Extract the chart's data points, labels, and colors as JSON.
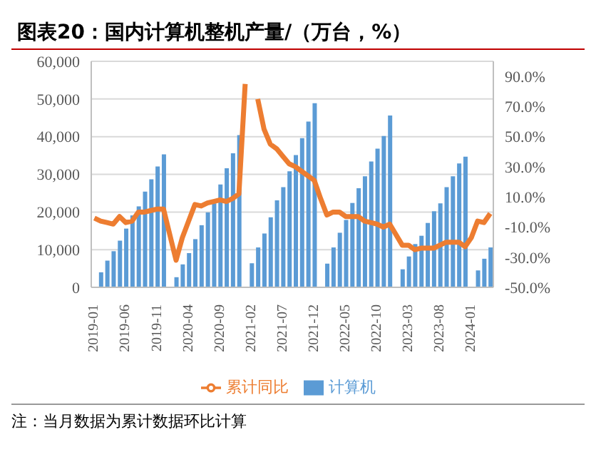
{
  "chart_data": {
    "type": "bar",
    "title": "图表20：国内计算机整机产量/（万台，%）",
    "categories": [
      "2019-01",
      null,
      null,
      null,
      null,
      "2019-06",
      null,
      null,
      null,
      null,
      "2019-11",
      null,
      null,
      null,
      null,
      "2020-04",
      null,
      null,
      null,
      null,
      "2020-09",
      null,
      null,
      null,
      null,
      "2021-02",
      null,
      null,
      null,
      null,
      "2021-07",
      null,
      null,
      null,
      null,
      "2021-12",
      null,
      null,
      null,
      null,
      "2022-05",
      null,
      null,
      null,
      null,
      "2022-10",
      null,
      null,
      null,
      null,
      "2023-03",
      null,
      null,
      null,
      null,
      "2023-08",
      null,
      null,
      null,
      null,
      "2024-01",
      null,
      null,
      null
    ],
    "series": [
      {
        "name": "计算机",
        "color": "#5b9bd5",
        "values": [
          null,
          4000,
          7100,
          9600,
          12400,
          15600,
          19100,
          21500,
          25400,
          28700,
          32100,
          35300,
          null,
          2700,
          6100,
          9100,
          12800,
          16500,
          19900,
          22300,
          27300,
          31600,
          35600,
          40400,
          null,
          6400,
          10600,
          14300,
          18600,
          23100,
          26600,
          30800,
          35100,
          39600,
          44000,
          48900,
          null,
          6300,
          10600,
          14500,
          17900,
          22400,
          26300,
          29500,
          33400,
          36800,
          40200,
          45600,
          null,
          4800,
          8200,
          11500,
          13700,
          17100,
          20200,
          22300,
          26600,
          29500,
          32900,
          34700,
          null,
          4500,
          7600,
          10600
        ]
      },
      {
        "name": "累计同比",
        "type": "line",
        "axis": "y2",
        "color": "#ed7d31",
        "values": [
          -4,
          -6,
          -7,
          -8,
          -3,
          -7,
          -6,
          0,
          0,
          1,
          2,
          2,
          -15,
          -32,
          -17,
          -6,
          5,
          4,
          6,
          7,
          8,
          7,
          9,
          12,
          85,
          null,
          75,
          55,
          45,
          42,
          37,
          32,
          30,
          27,
          24,
          21,
          9,
          -2,
          0,
          0,
          -3,
          -3,
          -3,
          -6,
          -7,
          -8,
          -10,
          -8,
          -15,
          -22,
          -22,
          -25,
          -24,
          -24,
          -24,
          -22,
          -20,
          -20,
          -20,
          -23,
          -17,
          -6,
          -7,
          -1
        ]
      }
    ],
    "ylim": [
      0,
      60000
    ],
    "yticks": [
      {
        "value": 0,
        "label": "0"
      },
      {
        "value": 10000,
        "label": "10,000"
      },
      {
        "value": 20000,
        "label": "20,000"
      },
      {
        "value": 30000,
        "label": "30,000"
      },
      {
        "value": 40000,
        "label": "40,000"
      },
      {
        "value": 50000,
        "label": "50,000"
      },
      {
        "value": 60000,
        "label": "60,000"
      }
    ],
    "y2lim": [
      -50,
      100
    ],
    "y2ticks": [
      {
        "value": -50,
        "label": "-50.0%"
      },
      {
        "value": -30,
        "label": "-30.0%"
      },
      {
        "value": -10,
        "label": "-10.0%"
      },
      {
        "value": 10,
        "label": "10.0%"
      },
      {
        "value": 30,
        "label": "30.0%"
      },
      {
        "value": 50,
        "label": "50.0%"
      },
      {
        "value": 70,
        "label": "70.0%"
      },
      {
        "value": 90,
        "label": "90.0%"
      }
    ],
    "grid": "y",
    "legend": "bottom",
    "annotations": [
      "注：当月数据为累计数据环比计算"
    ]
  }
}
